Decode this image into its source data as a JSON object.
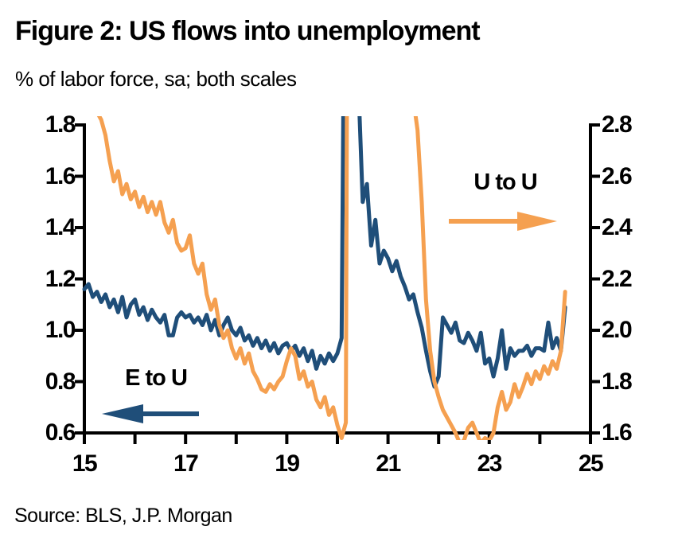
{
  "header": {
    "title": "Figure 2: US flows into unemployment",
    "subtitle": "% of labor force, sa; both scales"
  },
  "footer": {
    "source": "Source: BLS, J.P. Morgan"
  },
  "chart_data": {
    "type": "line",
    "title": "Figure 2: US flows into unemployment",
    "subtitle": "% of labor force, sa; both scales",
    "source": "Source: BLS, J.P. Morgan",
    "frequency": "monthly",
    "start": "2015-01",
    "end": "2024-07",
    "grid": "off",
    "x_axis": {
      "range": [
        15,
        25
      ],
      "ticks": [
        15,
        16,
        17,
        18,
        19,
        20,
        21,
        22,
        23,
        24,
        25
      ],
      "labeled_ticks": [
        15,
        17,
        19,
        21,
        23,
        25
      ]
    },
    "left_axis": {
      "range": [
        0.6,
        1.8
      ],
      "ticks": [
        1.8,
        1.6,
        1.4,
        1.2,
        1.0,
        0.8,
        0.6
      ],
      "series": "E to U"
    },
    "right_axis": {
      "range": [
        1.6,
        2.8
      ],
      "ticks": [
        2.8,
        2.6,
        2.4,
        2.2,
        2.0,
        1.8,
        1.6
      ],
      "series": "U to U"
    },
    "series": [
      {
        "name": "E to U",
        "axis": "left",
        "color": "#1F4E79",
        "values": [
          1.16,
          1.18,
          1.13,
          1.15,
          1.11,
          1.14,
          1.09,
          1.12,
          1.07,
          1.13,
          1.05,
          1.1,
          1.12,
          1.06,
          1.09,
          1.04,
          1.08,
          1.05,
          1.03,
          1.06,
          0.98,
          0.98,
          1.05,
          1.07,
          1.05,
          1.06,
          1.03,
          1.05,
          1.02,
          1.06,
          1.0,
          1.04,
          0.98,
          1.02,
          1.05,
          1.0,
          0.98,
          1.01,
          0.96,
          0.98,
          0.94,
          0.97,
          0.93,
          0.96,
          0.92,
          0.95,
          0.91,
          0.94,
          0.95,
          0.92,
          0.94,
          0.9,
          0.93,
          0.88,
          0.92,
          0.85,
          0.9,
          0.87,
          0.91,
          0.88,
          0.91,
          0.97,
          3.2,
          7.5,
          2.9,
          1.95,
          1.5,
          1.57,
          1.33,
          1.43,
          1.26,
          1.31,
          1.28,
          1.23,
          1.27,
          1.21,
          1.17,
          1.12,
          1.14,
          1.07,
          1.01,
          0.92,
          0.84,
          0.78,
          0.82,
          1.05,
          1.02,
          0.99,
          1.03,
          0.96,
          0.95,
          0.99,
          0.96,
          0.92,
          0.99,
          0.87,
          0.89,
          0.82,
          0.89,
          1.0,
          0.85,
          0.93,
          0.9,
          0.92,
          0.92,
          0.94,
          0.9,
          0.93,
          0.93,
          0.92,
          1.03,
          0.93,
          0.97,
          0.92,
          1.09
        ]
      },
      {
        "name": "U to U",
        "axis": "right",
        "color": "#F5A050",
        "values": [
          2.95,
          2.9,
          2.88,
          2.85,
          2.82,
          2.76,
          2.66,
          2.58,
          2.62,
          2.53,
          2.57,
          2.51,
          2.54,
          2.48,
          2.52,
          2.46,
          2.5,
          2.45,
          2.5,
          2.42,
          2.38,
          2.43,
          2.34,
          2.31,
          2.32,
          2.37,
          2.26,
          2.22,
          2.26,
          2.14,
          2.08,
          2.12,
          2.02,
          1.97,
          2.0,
          1.93,
          1.89,
          1.93,
          1.87,
          1.91,
          1.84,
          1.81,
          1.77,
          1.76,
          1.79,
          1.77,
          1.8,
          1.82,
          1.88,
          1.93,
          1.9,
          1.81,
          1.84,
          1.78,
          1.8,
          1.73,
          1.7,
          1.74,
          1.67,
          1.7,
          1.63,
          1.58,
          1.64,
          6.5,
          5.5,
          4.8,
          4.5,
          4.2,
          4.0,
          3.8,
          3.7,
          3.6,
          3.5,
          3.4,
          3.3,
          3.2,
          3.1,
          3.0,
          2.9,
          2.78,
          2.5,
          2.12,
          1.92,
          1.8,
          1.74,
          1.69,
          1.66,
          1.63,
          1.6,
          1.56,
          1.57,
          1.62,
          1.64,
          1.6,
          1.56,
          1.58,
          1.57,
          1.6,
          1.7,
          1.76,
          1.69,
          1.72,
          1.79,
          1.74,
          1.78,
          1.83,
          1.79,
          1.84,
          1.81,
          1.86,
          1.83,
          1.88,
          1.85,
          1.92,
          2.15
        ]
      }
    ],
    "annotations": [
      {
        "text": "U to U",
        "arrow_direction": "right",
        "color": "#F5A050"
      },
      {
        "text": "E to U",
        "arrow_direction": "left",
        "color": "#1F4E79"
      }
    ],
    "axis_color": "#000000"
  }
}
